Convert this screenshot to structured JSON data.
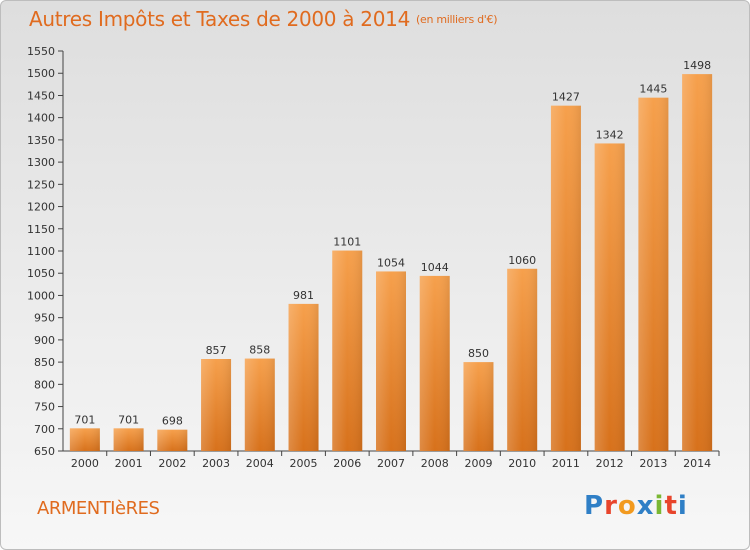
{
  "title": "Autres Impôts et Taxes de 2000 à 2014",
  "unit": "(en milliers d'€)",
  "commune": "ARMENTIèRES",
  "brand": {
    "letters": [
      "P",
      "r",
      "o",
      "x",
      "i",
      "t",
      "i"
    ],
    "colors": [
      "#2f7fc6",
      "#e8452c",
      "#f29a1f",
      "#2f7fc6",
      "#7ab733",
      "#e8452c",
      "#2f7fc6"
    ]
  },
  "chart_data": {
    "type": "bar",
    "title": "Autres Impôts et Taxes de 2000 à 2014",
    "categories": [
      "2000",
      "2001",
      "2002",
      "2003",
      "2004",
      "2005",
      "2006",
      "2007",
      "2008",
      "2009",
      "2010",
      "2011",
      "2012",
      "2013",
      "2014"
    ],
    "values": [
      701,
      701,
      698,
      857,
      858,
      981,
      1101,
      1054,
      1044,
      850,
      1060,
      1427,
      1342,
      1445,
      1498
    ],
    "xlabel": "",
    "ylabel": "",
    "ylim": [
      650,
      1550
    ],
    "ytick_step": 50,
    "grid": false,
    "bar_color": "#f0913a"
  }
}
